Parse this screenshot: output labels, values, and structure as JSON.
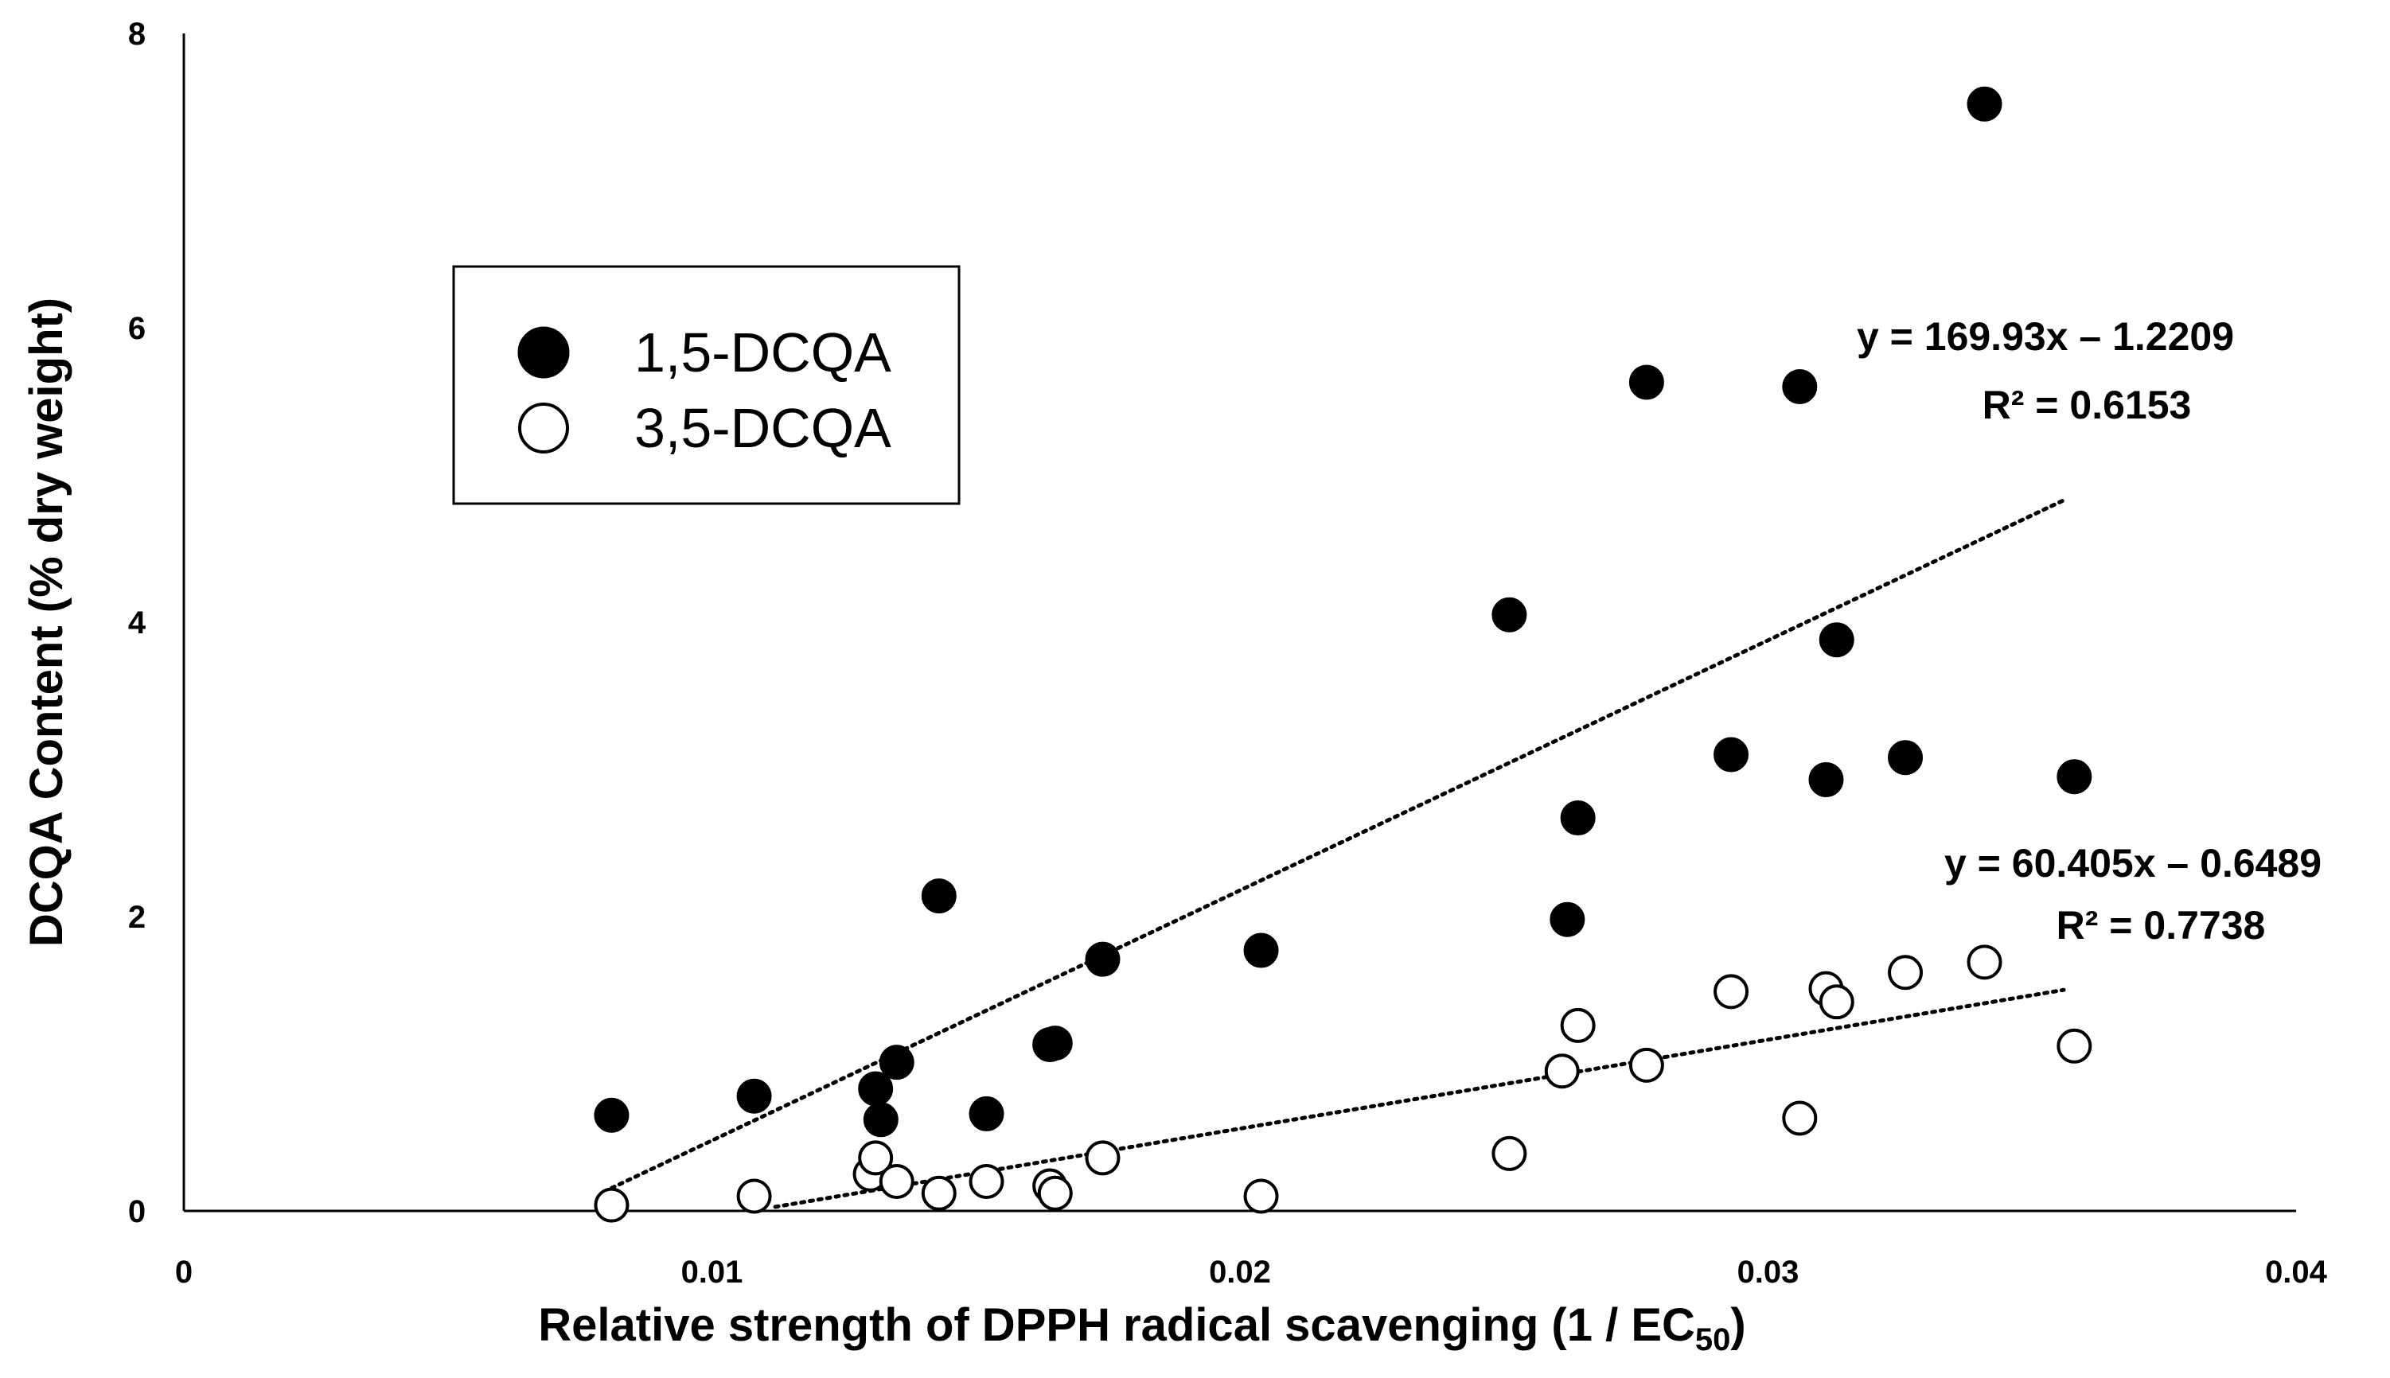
{
  "chart_data": {
    "type": "scatter",
    "title": "",
    "xlabel": "Relative strength of DPPH radical scavenging (1 / EC",
    "xlabel_subscript": "50",
    "xlabel_end": ")",
    "ylabel": "DCQA Content  (% dry weight)",
    "xlim": [
      0,
      0.04
    ],
    "ylim": [
      0,
      8
    ],
    "x_ticks": [
      0,
      0.01,
      0.02,
      0.03,
      0.04
    ],
    "x_tick_labels": [
      "0",
      "0.01",
      "0.02",
      "0.03",
      "0.04"
    ],
    "y_ticks": [
      0,
      2,
      4,
      6,
      8
    ],
    "y_tick_labels": [
      "0",
      "2",
      "4",
      "6",
      "8"
    ],
    "grid": false,
    "legend_position": "upper-left",
    "series": [
      {
        "name": "1,5-DCQA",
        "marker": "filled-circle",
        "points": [
          [
            0.0081,
            0.65
          ],
          [
            0.0108,
            0.78
          ],
          [
            0.0131,
            0.83
          ],
          [
            0.0132,
            0.62
          ],
          [
            0.0135,
            1.01
          ],
          [
            0.0143,
            2.14
          ],
          [
            0.0152,
            0.66
          ],
          [
            0.0164,
            1.13
          ],
          [
            0.0165,
            1.14
          ],
          [
            0.0174,
            1.71
          ],
          [
            0.0204,
            1.77
          ],
          [
            0.0251,
            4.05
          ],
          [
            0.0262,
            1.98
          ],
          [
            0.0264,
            2.67
          ],
          [
            0.0277,
            5.63
          ],
          [
            0.0293,
            3.1
          ],
          [
            0.0306,
            5.6
          ],
          [
            0.0311,
            2.93
          ],
          [
            0.0313,
            3.88
          ],
          [
            0.0326,
            3.08
          ],
          [
            0.0341,
            7.52
          ],
          [
            0.0358,
            2.95
          ]
        ],
        "trendline": {
          "x_range": [
            0.0081,
            0.0356
          ],
          "equation": "y = 169.93x – 1.2209",
          "r2": "R² = 0.6153"
        }
      },
      {
        "name": "3,5-DCQA",
        "marker": "open-circle",
        "points": [
          [
            0.0081,
            0.04
          ],
          [
            0.0108,
            0.1
          ],
          [
            0.013,
            0.25
          ],
          [
            0.0131,
            0.36
          ],
          [
            0.0135,
            0.2
          ],
          [
            0.0143,
            0.12
          ],
          [
            0.0152,
            0.2
          ],
          [
            0.0164,
            0.17
          ],
          [
            0.0165,
            0.12
          ],
          [
            0.0174,
            0.36
          ],
          [
            0.0204,
            0.1
          ],
          [
            0.0251,
            0.39
          ],
          [
            0.0261,
            0.95
          ],
          [
            0.0264,
            1.26
          ],
          [
            0.0277,
            0.99
          ],
          [
            0.0293,
            1.49
          ],
          [
            0.0306,
            0.63
          ],
          [
            0.0311,
            1.51
          ],
          [
            0.0313,
            1.42
          ],
          [
            0.0326,
            1.62
          ],
          [
            0.0341,
            1.69
          ],
          [
            0.0358,
            1.12
          ]
        ],
        "trendline": {
          "x_range": [
            0.0112,
            0.0356
          ],
          "equation": "y = 60.405x – 0.6489",
          "r2": "R² = 0.7738"
        }
      }
    ]
  }
}
